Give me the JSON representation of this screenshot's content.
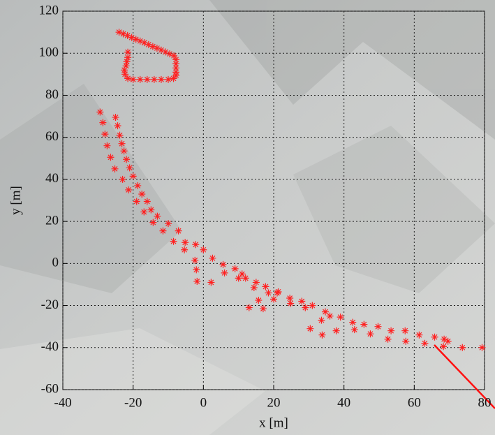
{
  "chart_data": {
    "type": "scatter",
    "x_label": "x [m]",
    "y_label": "y [m]",
    "xlim": [
      -40,
      80
    ],
    "ylim": [
      -60,
      120
    ],
    "xticks": [
      -40,
      -20,
      0,
      20,
      40,
      60,
      80
    ],
    "yticks": [
      -60,
      -40,
      -20,
      0,
      20,
      40,
      60,
      80,
      100,
      120
    ],
    "grid": true,
    "color": "#ff2020",
    "marker": "*",
    "x": [
      -24,
      -22.8,
      -21.6,
      -20.4,
      -19.2,
      -18,
      -16.8,
      -15.6,
      -14.4,
      -13.2,
      -12,
      -10.8,
      -9.6,
      -8.4,
      -7.8,
      -7.8,
      -7.8,
      -7.8,
      -7.8,
      -8.5,
      -10,
      -12,
      -14,
      -16,
      -18,
      -20,
      -21.5,
      -22.3,
      -22.5,
      -22,
      -21.8,
      -21.5,
      -21.5,
      -29.4,
      -28.6,
      -28,
      -27.4,
      -26.4,
      -25,
      -24.4,
      -23.8,
      -23.2,
      -22.6,
      -21.9,
      -21,
      -25.2,
      -23,
      -20,
      -18.7,
      -21.3,
      -17.5,
      -19,
      -16,
      -14.9,
      -16.9,
      -13.1,
      -14.3,
      -10,
      -11.5,
      -7.1,
      -8.5,
      -5.2,
      -5.4,
      -2.2,
      -2.4,
      0,
      2.6,
      -2,
      -1.8,
      2.2,
      5.6,
      6,
      9,
      10,
      12,
      11,
      15,
      14.4,
      17.7,
      18.5,
      20,
      21,
      21.3,
      15.7,
      17,
      13,
      24.6,
      24.8,
      28,
      29,
      31,
      30.4,
      33.8,
      33.6,
      34.7,
      36,
      37.8,
      39,
      42.5,
      43,
      45.7,
      47.5,
      49.7,
      52.5,
      53.4,
      57.4,
      57.6,
      61.4,
      63,
      65.8,
      68.5,
      69.6,
      68.3,
      73.7,
      79.3
    ],
    "y": [
      110,
      109.2,
      108.4,
      107.5,
      106.6,
      105.8,
      105,
      104.1,
      103.2,
      102.4,
      101.5,
      100.6,
      99.7,
      98.8,
      97,
      95,
      93,
      91,
      89.5,
      88,
      87.5,
      87.5,
      87.5,
      87.5,
      87.5,
      87.5,
      88,
      90,
      92,
      94,
      96,
      98,
      100.5,
      72,
      67,
      61.5,
      56,
      50.5,
      69.5,
      65.5,
      61,
      57,
      53.5,
      49.5,
      45.5,
      45,
      40,
      41.5,
      37,
      35,
      33,
      29.5,
      29.5,
      25.5,
      24.5,
      22.5,
      19.5,
      19,
      15.5,
      15.5,
      10.5,
      10,
      6.5,
      9,
      1.5,
      6.5,
      2.5,
      -3,
      -8.5,
      -9,
      -0.5,
      -4.5,
      -2.5,
      -7,
      -7,
      -5,
      -9,
      -11.5,
      -11,
      -14,
      -17,
      -14,
      -13.5,
      -17.5,
      -21.5,
      -21,
      -16.5,
      -19,
      -18,
      -21,
      -20,
      -31,
      -34,
      -27,
      -23,
      -25,
      -32,
      -25.5,
      -28,
      -31.5,
      -29,
      -33.5,
      -30,
      -36,
      -32,
      -32,
      -37,
      -34,
      -38,
      -35,
      -36,
      -37,
      -39.5,
      -40,
      -40
    ]
  }
}
